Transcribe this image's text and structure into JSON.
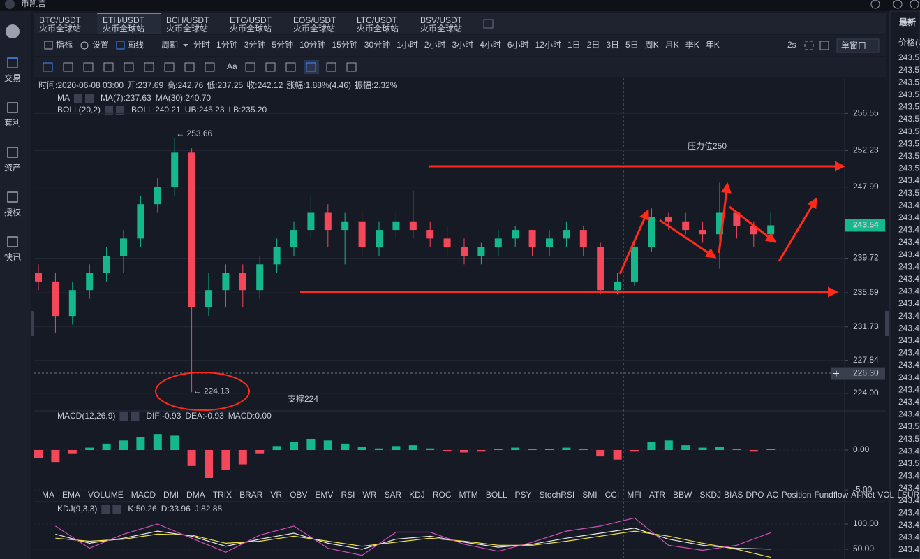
{
  "app": {
    "title": "币凯言"
  },
  "sidebar": [
    "交易",
    "套利",
    "资产",
    "授权",
    "快讯"
  ],
  "tabs": [
    {
      "pair": "BTC/USDT",
      "exchange": "火币全球站"
    },
    {
      "pair": "ETH/USDT",
      "exchange": "火币全球站"
    },
    {
      "pair": "BCH/USDT",
      "exchange": "火币全球站"
    },
    {
      "pair": "ETC/USDT",
      "exchange": "火币全球站"
    },
    {
      "pair": "EOS/USDT",
      "exchange": "火币全球站"
    },
    {
      "pair": "LTC/USDT",
      "exchange": "火币全球站"
    },
    {
      "pair": "BSV/USDT",
      "exchange": "火币全球站"
    }
  ],
  "active_tab": 1,
  "toolbar": {
    "indicators": "指标",
    "settings": "设置",
    "draw": "画线",
    "period": "周期",
    "periods": [
      "分时",
      "1分钟",
      "3分钟",
      "5分钟",
      "10分钟",
      "15分钟",
      "30分钟",
      "1小时",
      "2小时",
      "3小时",
      "4小时",
      "6小时",
      "12小时",
      "1日",
      "2日",
      "3日",
      "5日",
      "周K",
      "月K",
      "季K",
      "年K"
    ],
    "active_period": 7,
    "refresh": "2s",
    "window": "单窗口",
    "font_tool": "Aa"
  },
  "info": [
    "时间:2020-06-08 03:00",
    "开:237.69",
    "高:242.76",
    "低:237.25",
    "收:242.12",
    "涨幅:1.88%(4.46)",
    "振幅:2.32%"
  ],
  "ma_legend": [
    {
      "text": "MA",
      "color": "#c8ccd6"
    },
    {
      "text": "MA(7):237.63",
      "color": "#c8ccd6"
    },
    {
      "text": "MA(30):240.70",
      "color": "#f0e040"
    }
  ],
  "boll_legend": [
    {
      "text": "BOLL(20,2)",
      "color": "#c8ccd6"
    },
    {
      "text": "BOLL:240.21",
      "color": "#c8ccd6"
    },
    {
      "text": "UB:245.23",
      "color": "#f0e040"
    },
    {
      "text": "LB:235.20",
      "color": "#d04fb8"
    }
  ],
  "macd_legend": [
    {
      "text": "MACD(12,26,9)",
      "color": "#c8ccd6"
    },
    {
      "text": "DIF:-0.93",
      "color": "#c8ccd6"
    },
    {
      "text": "DEA:-0.93",
      "color": "#f0e040"
    },
    {
      "text": "MACD:0.00",
      "color": "#14b88a"
    }
  ],
  "kdj_legend": [
    {
      "text": "KDJ(9,3,3)",
      "color": "#c8ccd6"
    },
    {
      "text": "K:50.26",
      "color": "#c8ccd6"
    },
    {
      "text": "D:33.96",
      "color": "#f0e040"
    },
    {
      "text": "J:82.88",
      "color": "#d04fb8"
    }
  ],
  "indicator_tabs": {
    "items": [
      "MA",
      "EMA",
      "VOLUME",
      "MACD",
      "DMI",
      "DMA",
      "TRIX",
      "BRAR",
      "VR",
      "OBV",
      "EMV",
      "RSI",
      "WR",
      "SAR",
      "KDJ",
      "ROC",
      "MTM",
      "BOLL",
      "PSY",
      "StochRSI",
      "SMI",
      "CCI",
      "MFI",
      "ATR",
      "BBW",
      "SKDJ",
      "BIAS",
      "DPO",
      "AO",
      "Position",
      "Fundflow",
      "AI-Net",
      "VOL",
      "LSUR"
    ],
    "active": 3,
    "muted": 14
  },
  "ticker": {
    "title": "最新",
    "column": "价格(U",
    "prices": [
      {
        "text": "243.5",
        "color": "#f5475a"
      },
      {
        "text": "243.5",
        "color": "#5c6370"
      },
      {
        "text": "243.5",
        "color": "#f5475a"
      },
      {
        "text": "243.5",
        "color": "#14b88a"
      },
      {
        "text": "243.5",
        "color": "#5c6370"
      },
      {
        "text": "243.5",
        "color": "#14b88a"
      },
      {
        "text": "243.5",
        "color": "#f5475a"
      },
      {
        "text": "243.5",
        "color": "#5c6370"
      },
      {
        "text": "243.5",
        "color": "#f5475a"
      },
      {
        "text": "243.5",
        "color": "#5c6370"
      },
      {
        "text": "243.4",
        "color": "#14b88a"
      },
      {
        "text": "243.5",
        "color": "#5c6370"
      },
      {
        "text": "243.4",
        "color": "#14b88a"
      },
      {
        "text": "243.4",
        "color": "#5c6370"
      },
      {
        "text": "243.4",
        "color": "#5c6370"
      },
      {
        "text": "243.4",
        "color": "#5c6370"
      },
      {
        "text": "243.4",
        "color": "#5c6370"
      },
      {
        "text": "243.4",
        "color": "#5c6370"
      },
      {
        "text": "243.4",
        "color": "#5c6370"
      },
      {
        "text": "243.4",
        "color": "#5c6370"
      },
      {
        "text": "243.4",
        "color": "#5c6370"
      },
      {
        "text": "243.4",
        "color": "#5c6370"
      },
      {
        "text": "243.4",
        "color": "#5c6370"
      },
      {
        "text": "243.4",
        "color": "#5c6370"
      },
      {
        "text": "243.4",
        "color": "#f5475a"
      },
      {
        "text": "243.4",
        "color": "#5c6370"
      },
      {
        "text": "243.4",
        "color": "#f5475a"
      },
      {
        "text": "243.4",
        "color": "#5c6370"
      },
      {
        "text": "243.4",
        "color": "#14b88a"
      },
      {
        "text": "243.4",
        "color": "#5c6370"
      },
      {
        "text": "243.5",
        "color": "#5c6370"
      },
      {
        "text": "243.5",
        "color": "#14b88a"
      },
      {
        "text": "243.4",
        "color": "#5c6370"
      },
      {
        "text": "243.5",
        "color": "#14b88a"
      },
      {
        "text": "243.4",
        "color": "#5c6370"
      },
      {
        "text": "243.4",
        "color": "#f5475a"
      },
      {
        "text": "243.4",
        "color": "#f5475a"
      },
      {
        "text": "243.4",
        "color": "#f5475a"
      },
      {
        "text": "243.4",
        "color": "#f5475a"
      },
      {
        "text": "243.4",
        "color": "#f5475a"
      },
      {
        "text": "243.4",
        "color": "#f5475a"
      }
    ]
  },
  "chart_data": [
    {
      "type": "candlestick",
      "up_color": "#14b88a",
      "down_color": "#f5475a",
      "ylim": [
        222.2,
        260.4
      ],
      "yticks": [
        256.55,
        252.23,
        247.99,
        239.72,
        235.69,
        231.73,
        227.84,
        {
          "value": 224,
          "label": "224.00"
        }
      ],
      "open": [
        238,
        237,
        233,
        236,
        238,
        240,
        242,
        246,
        248,
        252,
        234,
        236,
        238,
        236,
        239,
        241,
        243,
        245,
        243,
        244,
        241,
        243,
        244,
        243,
        242,
        241,
        240,
        241,
        242,
        243,
        241,
        242,
        243,
        241,
        236,
        237,
        241,
        244.5,
        244,
        243,
        242.5,
        245,
        243.5,
        242.5
      ],
      "high": [
        239,
        238,
        237,
        239,
        241,
        243,
        247,
        249,
        253.66,
        252.5,
        238,
        239,
        239,
        240,
        242,
        244,
        247,
        246,
        245,
        245,
        244,
        245,
        247.5,
        244,
        243.5,
        242,
        241.5,
        243,
        243.5,
        243,
        243,
        244,
        243.5,
        241.5,
        238,
        242,
        245.5,
        245,
        245,
        244,
        248.5,
        245,
        244,
        245
      ],
      "low": [
        236,
        231,
        232,
        235,
        237,
        238,
        241,
        245,
        247,
        224.13,
        233,
        234,
        234,
        235,
        238,
        240,
        242,
        241,
        239,
        240,
        240,
        242,
        242,
        241,
        240,
        239,
        239,
        240,
        241,
        240,
        240,
        241,
        240,
        235.5,
        235.5,
        236.5,
        240.5,
        243,
        242.5,
        241.5,
        238.5,
        242,
        241,
        242
      ],
      "close": [
        237,
        233,
        236,
        238,
        240,
        242,
        246,
        248,
        252,
        234,
        236,
        238,
        236,
        239,
        241,
        243,
        245,
        243,
        244,
        241,
        243,
        244,
        243,
        242,
        241,
        240,
        241,
        242,
        243,
        241,
        242,
        243,
        241,
        236,
        237,
        241,
        244.5,
        244,
        243,
        242.5,
        245,
        243.5,
        242.5,
        243.54
      ],
      "last_price": {
        "value": 243.54,
        "label": "243.54"
      },
      "crosshair": {
        "value": 226.3,
        "label": "226.30"
      },
      "high_marker": {
        "value": 253.66,
        "label": "← 253.66"
      },
      "low_marker": {
        "value": 224.13,
        "label": "← 224.13"
      },
      "annotations": [
        "压力位250",
        "支撑224"
      ]
    },
    {
      "type": "bar",
      "up_color": "#14b88a",
      "down_color": "#f5475a",
      "ylim": [
        -4.9,
        4.9
      ],
      "yticks": [
        {
          "value": 0,
          "label": "0.00"
        },
        {
          "value": -5,
          "label": "-5.00"
        }
      ],
      "values": [
        -1,
        -1.5,
        -0.5,
        0.3,
        0.8,
        1.2,
        1.6,
        2,
        1.8,
        -2,
        -3.5,
        -2.5,
        -1.8,
        -0.5,
        0.5,
        1,
        1.4,
        1.2,
        0.8,
        0.4,
        0.2,
        0.5,
        0.6,
        0.2,
        -0.1,
        -0.3,
        -0.2,
        0.1,
        0.3,
        0.1,
        0.1,
        0.3,
        0.1,
        -0.8,
        -1.2,
        -0.2,
        1,
        1.2,
        0.6,
        0.3,
        0.4,
        0.1,
        -0.2,
        0.1
      ]
    },
    {
      "type": "line",
      "ylim": [
        30.6,
        144.4
      ],
      "yticks": [
        {
          "value": 100,
          "label": "100.00"
        },
        {
          "value": 50,
          "label": "50.00"
        }
      ],
      "series": [
        {
          "name": "K",
          "color": "#e8e8e8",
          "values": [
            80,
            62,
            72,
            86,
            76,
            56,
            70,
            82,
            62,
            50,
            70,
            76,
            64,
            54,
            60,
            72,
            82,
            92,
            70,
            58,
            52,
            50.26
          ]
        },
        {
          "name": "D",
          "color": "#f0e040",
          "values": [
            72,
            66,
            70,
            80,
            78,
            62,
            66,
            76,
            66,
            56,
            64,
            72,
            66,
            58,
            58,
            66,
            76,
            86,
            76,
            62,
            50,
            33.96
          ]
        },
        {
          "name": "J",
          "color": "#d04fb8",
          "values": [
            96,
            52,
            80,
            100,
            72,
            44,
            78,
            96,
            52,
            38,
            84,
            84,
            60,
            46,
            64,
            86,
            96,
            112,
            58,
            48,
            58,
            82.88
          ]
        }
      ]
    }
  ]
}
